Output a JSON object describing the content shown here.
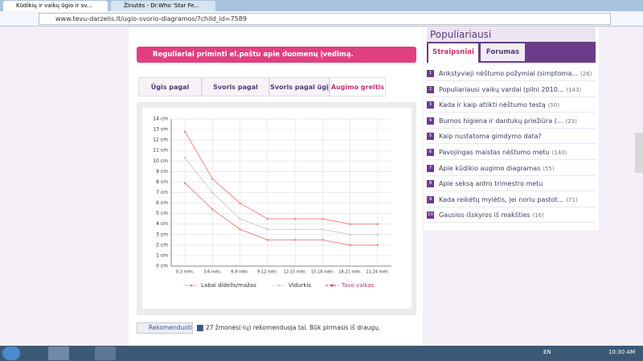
{
  "browser": {
    "tabs": [
      "Kūdikių ir vaikų ūgio ir sv...",
      "Žinutės - Dr.Who 'Star Fe..."
    ],
    "url": "www.tevu-darzelis.lt/ugio-svorio-diagramos/?child_id=7589"
  },
  "reminder": "Reguliariai priminti el.paštu apie duomenų įvedimą.",
  "chart_tabs": [
    "Ūgis pagal amžių",
    "Svoris pagal amžių",
    "Svoris pagal ūgį",
    "Augimo greitis"
  ],
  "chart_data": {
    "type": "line",
    "categories": [
      "0-3 mėn.",
      "3-6 mėn.",
      "6-9 mėn.",
      "9-12 mėn.",
      "12-15 mėn.",
      "15-18 mėn.",
      "18-21 mėn.",
      "21-24 mėn."
    ],
    "series": [
      {
        "name": "Labai didelis/mažas",
        "color": "#f08a86",
        "values": [
          12.8,
          8.3,
          6.0,
          4.5,
          4.5,
          4.5,
          4.0,
          4.0
        ],
        "lower_values": [
          7.9,
          5.4,
          3.5,
          2.5,
          2.5,
          2.5,
          2.0,
          2.0
        ]
      },
      {
        "name": "Vidurkis",
        "color": "#cfcfcf",
        "values": [
          10.3,
          7.0,
          4.5,
          3.5,
          3.5,
          3.5,
          3.0,
          3.0
        ]
      },
      {
        "name": "Tavo vaikas",
        "color": "#c8306e",
        "values": [
          null,
          null,
          null,
          null,
          null,
          null,
          null,
          null
        ]
      }
    ],
    "ylim": [
      0,
      14
    ],
    "yticks": [
      {
        "value": 0,
        "label": "0 cm"
      },
      {
        "value": 1,
        "label": "1 cm"
      },
      {
        "value": 2,
        "label": "2 cm"
      },
      {
        "value": 3,
        "label": "3 cm"
      },
      {
        "value": 4,
        "label": "4 cm"
      },
      {
        "value": 5,
        "label": "5 cm"
      },
      {
        "value": 6,
        "label": "6 cm"
      },
      {
        "value": 7,
        "label": "7 cm"
      },
      {
        "value": 8,
        "label": "8 cm"
      },
      {
        "value": 9,
        "label": "9 cm"
      },
      {
        "value": 10,
        "label": "10 cm"
      },
      {
        "value": 11,
        "label": "11 cm"
      },
      {
        "value": 12,
        "label": "12 cm"
      },
      {
        "value": 13,
        "label": "13 cm"
      },
      {
        "value": 14,
        "label": "14 cm"
      }
    ],
    "grid": true
  },
  "sidebar": {
    "title": "Populiariausi",
    "tabs": [
      "Straipsniai",
      "Forumas"
    ],
    "items": [
      {
        "rank": 1,
        "title": "Ankstyvieji nėštumo požymiai (simptoma...",
        "count": "(26)"
      },
      {
        "rank": 2,
        "title": "Populiariausi vaikų vardai (pilni 2010...",
        "count": "(143)"
      },
      {
        "rank": 3,
        "title": "Kada ir kaip atlikti nėštumo testą",
        "count": "(50)"
      },
      {
        "rank": 4,
        "title": "Burnos higiena ir dantukų priežiūra (...",
        "count": "(23)"
      },
      {
        "rank": 5,
        "title": "Kaip nustatoma gimdymo data?"
      },
      {
        "rank": 6,
        "title": "Pavojingas maistas nėštumo metu",
        "count": "(140)"
      },
      {
        "rank": 7,
        "title": "Apie kūdikio augimo diagramas",
        "count": "(55)"
      },
      {
        "rank": 8,
        "title": "Apie seksą antro trimestro metu"
      },
      {
        "rank": 9,
        "title": "Kada reikėtų mylėtis, jei noriu pastot...",
        "count": "(71)"
      },
      {
        "rank": 10,
        "title": "Gausios išskyros iš makšties",
        "count": "(16)"
      }
    ]
  },
  "recommend": {
    "button": "Rekomenduoti",
    "text": "27 žmonės(-ių) rekomenduoja tai. Būk pirmasis iš draugų."
  },
  "taskbar": {
    "language": "EN",
    "time": "10:30 AM"
  }
}
